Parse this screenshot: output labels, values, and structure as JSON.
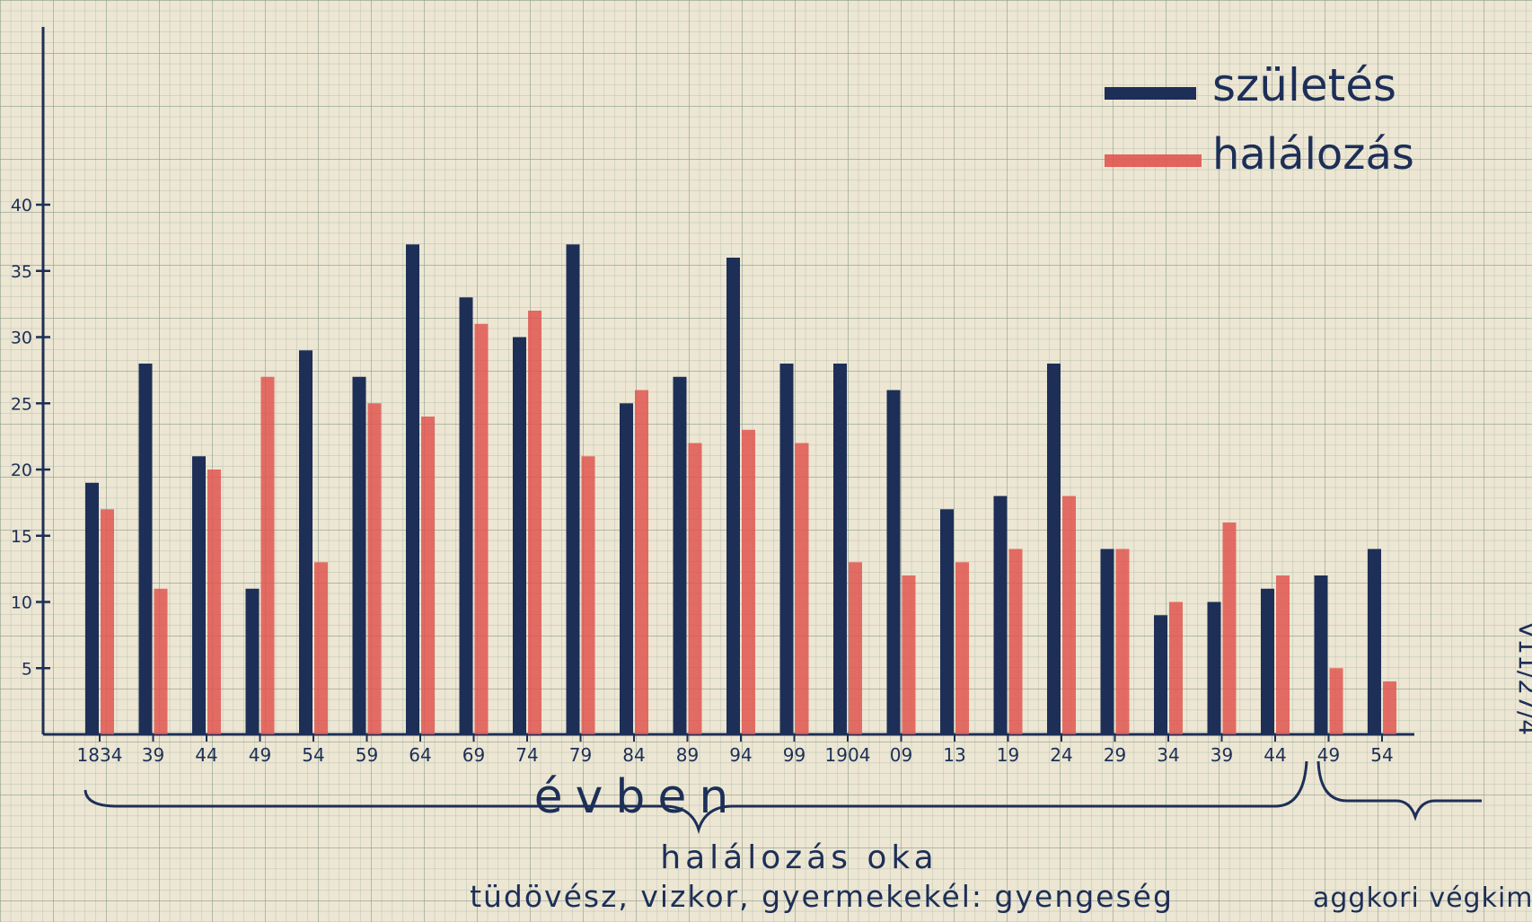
{
  "chart_data": {
    "type": "bar",
    "title": "",
    "xlabel": "évben",
    "ylabel": "",
    "ylim": [
      0,
      40
    ],
    "yticks": [
      "5",
      "10",
      "15",
      "20",
      "25",
      "30",
      "35",
      "40"
    ],
    "categories": [
      "1834",
      "39",
      "44",
      "49",
      "54",
      "59",
      "64",
      "69",
      "74",
      "79",
      "84",
      "89",
      "94",
      "99",
      "1904",
      "09",
      "13",
      "19",
      "24",
      "29",
      "34",
      "39",
      "44",
      "49",
      "54"
    ],
    "series": [
      {
        "name": "születés",
        "color": "#1d2f57",
        "values": [
          19,
          28,
          21,
          11,
          29,
          27,
          37,
          33,
          30,
          37,
          25,
          27,
          36,
          28,
          28,
          26,
          17,
          18,
          28,
          14,
          9,
          10,
          11,
          12,
          14
        ]
      },
      {
        "name": "halálozás",
        "color": "#e0564f",
        "values": [
          17,
          11,
          20,
          27,
          13,
          25,
          24,
          31,
          32,
          21,
          26,
          22,
          23,
          22,
          13,
          12,
          13,
          14,
          18,
          14,
          10,
          16,
          12,
          5,
          4
        ]
      }
    ],
    "legend_position": "top-right",
    "grid": true,
    "grid_color": "#8fa08e",
    "axis_color": "#1d2f57",
    "annotations": {
      "cause_title": "halálozás oka",
      "cause_left": "tüdövész, vizkor, gyermekekél: gyengeség",
      "cause_right": "aggkori végkim",
      "side_note": "V11/27/4"
    }
  }
}
